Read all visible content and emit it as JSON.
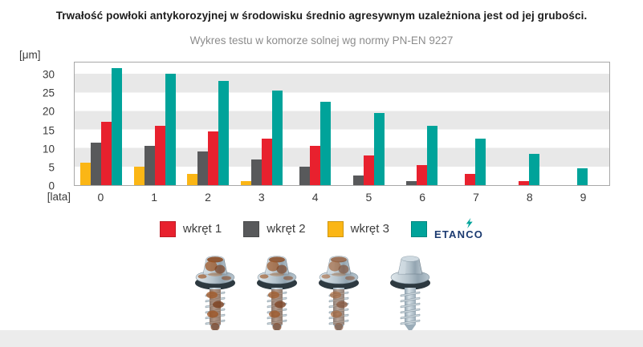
{
  "title": "Trwałość powłoki antykorozyjnej w środowisku średnio agresywnym uzależniona jest od jej grubości.",
  "subtitle": "Wykres testu w komorze solnej wg normy PN-EN 9227",
  "chart_data": {
    "type": "bar",
    "categories": [
      "0",
      "1",
      "2",
      "3",
      "4",
      "5",
      "6",
      "7",
      "8",
      "9"
    ],
    "series": [
      {
        "name": "wkręt 1",
        "color": "#e8212e",
        "values": [
          17,
          16,
          14.5,
          12.5,
          10.5,
          8,
          5.5,
          3,
          1,
          0
        ]
      },
      {
        "name": "wkręt 2",
        "color": "#58595b",
        "values": [
          11.5,
          10.5,
          9,
          7,
          5,
          2.5,
          1,
          0,
          0,
          0
        ]
      },
      {
        "name": "wkręt 3",
        "color": "#fbb615",
        "values": [
          6,
          5,
          3,
          1,
          0,
          0,
          0,
          0,
          0,
          0
        ]
      },
      {
        "name": "ETANCO",
        "color": "#00a39a",
        "values": [
          31.5,
          30,
          28,
          25.5,
          22.5,
          19.5,
          16,
          12.5,
          8.5,
          4.5
        ]
      }
    ],
    "bar_order_in_group": [
      "wkręt 3",
      "wkręt 2",
      "wkręt 1",
      "ETANCO"
    ],
    "ylabel": "[μm]",
    "xlabel": "[lata]",
    "yticks": [
      0,
      5,
      10,
      15,
      20,
      25,
      30
    ],
    "ylim": [
      0,
      33.5
    ],
    "grid": "horizontal gray stripes every 5 units",
    "legend_position": "bottom",
    "stripe_color": "#e8e8e8",
    "frame_color": "#a8a8a8"
  },
  "legend": {
    "items": [
      {
        "label": "wkręt 1",
        "color": "#e8212e",
        "type": "swatch"
      },
      {
        "label": "wkręt 2",
        "color": "#58595b",
        "type": "swatch"
      },
      {
        "label": "wkręt 3",
        "color": "#fbb615",
        "type": "swatch"
      },
      {
        "label": "ETANCO",
        "color": "#00a39a",
        "type": "swatch-logo",
        "logo_text": "ETANCO",
        "logo_color": "#1b3a70",
        "flash_color": "#00a39a"
      }
    ]
  },
  "screws": [
    {
      "name": "screw-photo-1",
      "rust_level": 1.0
    },
    {
      "name": "screw-photo-2",
      "rust_level": 0.95
    },
    {
      "name": "screw-photo-3",
      "rust_level": 0.8
    },
    {
      "name": "screw-photo-4",
      "rust_level": 0.0
    }
  ]
}
